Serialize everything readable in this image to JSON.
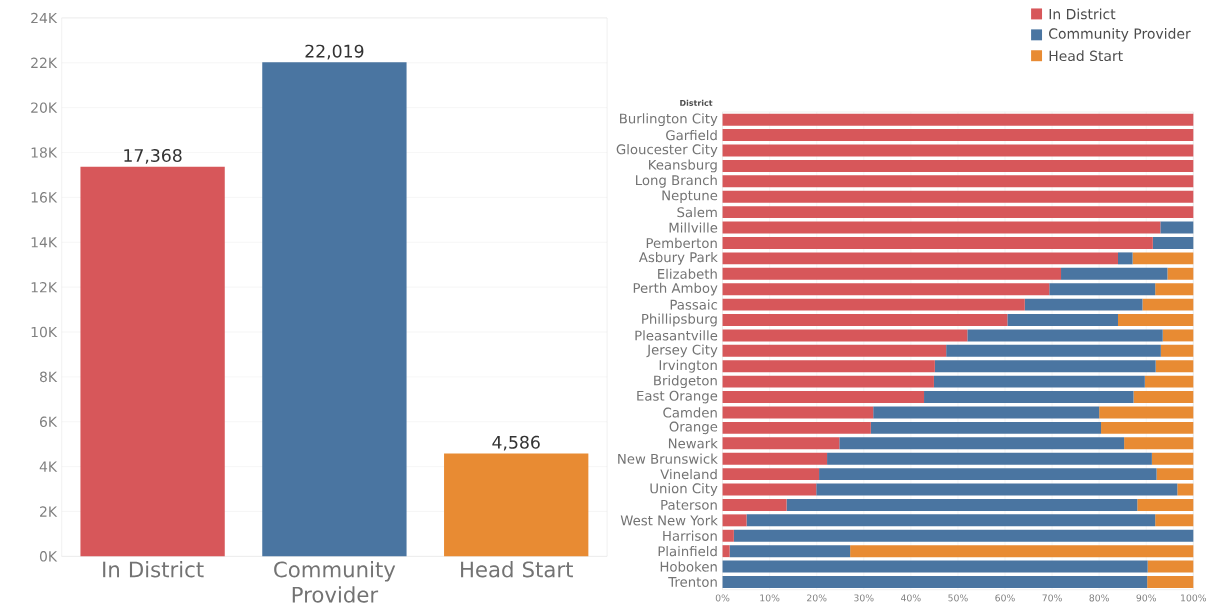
{
  "chart_data": [
    {
      "type": "bar",
      "categories": [
        "In District",
        "Community Provider",
        "Head Start"
      ],
      "values": [
        17368,
        22019,
        4586
      ],
      "colors": [
        "#d7575a",
        "#4a75a1",
        "#e88b33"
      ],
      "value_labels": [
        "17,368",
        "22,019",
        "4,586"
      ],
      "ylim": [
        0,
        24000
      ],
      "yticks": [
        {
          "value": 0,
          "label": "0K"
        },
        {
          "value": 2000,
          "label": "2K"
        },
        {
          "value": 4000,
          "label": "4K"
        },
        {
          "value": 6000,
          "label": "6K"
        },
        {
          "value": 8000,
          "label": "8K"
        },
        {
          "value": 10000,
          "label": "10K"
        },
        {
          "value": 12000,
          "label": "12K"
        },
        {
          "value": 14000,
          "label": "14K"
        },
        {
          "value": 16000,
          "label": "16K"
        },
        {
          "value": 18000,
          "label": "18K"
        },
        {
          "value": 20000,
          "label": "20K"
        },
        {
          "value": 22000,
          "label": "22K"
        },
        {
          "value": 24000,
          "label": "24K"
        }
      ],
      "grid": "y"
    },
    {
      "type": "bar",
      "orientation": "horizontal",
      "stacked": true,
      "ylabel": "District",
      "categories": [
        "Burlington City",
        "Garfield",
        "Gloucester City",
        "Keansburg",
        "Long Branch",
        "Neptune",
        "Salem",
        "Millville",
        "Pemberton",
        "Asbury Park",
        "Elizabeth",
        "Perth Amboy",
        "Passaic",
        "Phillipsburg",
        "Pleasantville",
        "Jersey City",
        "Irvington",
        "Bridgeton",
        "East Orange",
        "Camden",
        "Orange",
        "Newark",
        "New Brunswick",
        "Vineland",
        "Union City",
        "Paterson",
        "West New York",
        "Harrison",
        "Plainfield",
        "Hoboken",
        "Trenton"
      ],
      "series": [
        {
          "name": "In District",
          "color": "#d7575a",
          "values": [
            100,
            100,
            100,
            100,
            100,
            100,
            100,
            93.0,
            91.4,
            84.0,
            71.9,
            69.4,
            64.2,
            60.5,
            52.0,
            47.5,
            45.1,
            44.9,
            42.8,
            32.0,
            31.5,
            24.8,
            22.2,
            20.5,
            19.9,
            13.6,
            5.1,
            2.4,
            1.5,
            0,
            0
          ]
        },
        {
          "name": "Community Provider",
          "color": "#4a75a1",
          "values": [
            0,
            0,
            0,
            0,
            0,
            0,
            0,
            7.0,
            8.6,
            3.1,
            22.6,
            22.5,
            25.0,
            23.5,
            41.5,
            45.6,
            46.9,
            44.8,
            44.5,
            48.0,
            48.9,
            60.5,
            69.0,
            71.7,
            76.7,
            74.5,
            86.8,
            97.6,
            25.6,
            90.3,
            90.2
          ]
        },
        {
          "name": "Head Start",
          "color": "#e88b33",
          "values": [
            0,
            0,
            0,
            0,
            0,
            0,
            0,
            0,
            0,
            12.9,
            5.5,
            8.1,
            10.8,
            16.0,
            6.5,
            6.9,
            8.0,
            10.3,
            12.7,
            20.0,
            19.6,
            14.7,
            8.8,
            7.8,
            3.4,
            11.9,
            8.1,
            0,
            72.9,
            9.7,
            9.8
          ]
        }
      ],
      "xlim": [
        0,
        100
      ],
      "xticks": [
        {
          "value": 0,
          "label": "0%"
        },
        {
          "value": 10,
          "label": "10%"
        },
        {
          "value": 20,
          "label": "20%"
        },
        {
          "value": 30,
          "label": "30%"
        },
        {
          "value": 40,
          "label": "40%"
        },
        {
          "value": 50,
          "label": "50%"
        },
        {
          "value": 60,
          "label": "60%"
        },
        {
          "value": 70,
          "label": "70%"
        },
        {
          "value": 80,
          "label": "80%"
        },
        {
          "value": 90,
          "label": "90%"
        },
        {
          "value": 100,
          "label": "100%"
        }
      ],
      "grid": "x",
      "legend": "top right"
    }
  ]
}
